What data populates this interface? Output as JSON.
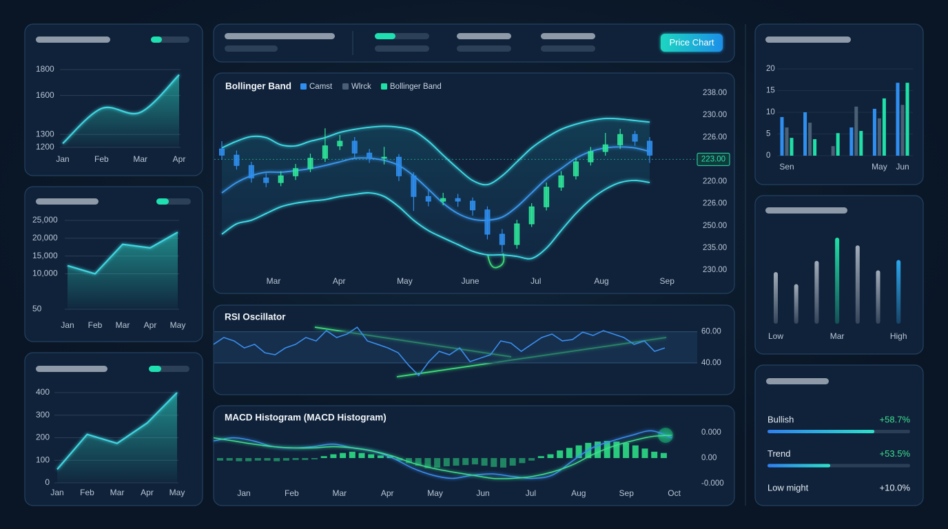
{
  "toolbar": {
    "button": "Price Chart"
  },
  "chart_data": [
    {
      "type": "area",
      "categories": [
        "Jan",
        "Feb",
        "Mar",
        "Apr"
      ],
      "values": [
        1230,
        1500,
        1470,
        1760
      ],
      "ylim": [
        1200,
        1800
      ],
      "yticks": [
        1200,
        1300,
        1600,
        1800
      ]
    },
    {
      "type": "area",
      "categories": [
        "Jan",
        "Feb",
        "Mar",
        "Apr",
        "May"
      ],
      "values": [
        12300,
        10000,
        18300,
        17300,
        21700
      ],
      "ylim": [
        50,
        25000
      ],
      "yticks": [
        50,
        {
          "value": 10000,
          "label": "10,000"
        },
        {
          "value": 15000,
          "label": "15,000"
        },
        {
          "value": 20000,
          "label": "20,000"
        },
        {
          "value": 25000,
          "label": "25,000"
        }
      ]
    },
    {
      "type": "area",
      "categories": [
        "Jan",
        "Feb",
        "Mar",
        "Apr",
        "May"
      ],
      "values": [
        60,
        215,
        175,
        265,
        400
      ],
      "ylim": [
        0,
        400
      ],
      "yticks": [
        0,
        100,
        200,
        300,
        400
      ]
    },
    {
      "type": "candlestick",
      "title": "Bollinger Band",
      "legend": [
        {
          "name": "Camst",
          "color": "#2f8ff0"
        },
        {
          "name": "Wlrck",
          "color": "#4a5f75"
        },
        {
          "name": "Bollinger Band",
          "color": "#1fe0a6"
        }
      ],
      "x_labels": [
        "Mar",
        "Apr",
        "May",
        "June",
        "Jul",
        "Aug",
        "Sep"
      ],
      "y_labels": [
        "238.00",
        "230.00",
        "226.00",
        "223.00",
        "220.00",
        "226.00",
        "250.00",
        "235.00",
        "230.00"
      ],
      "ylim": [
        205,
        245
      ],
      "up_color": "#2ee89a",
      "down_color": "#2f8ff0",
      "candles": {
        "open": [
          231.5,
          230.3,
          228.3,
          225.9,
          225.0,
          226.3,
          227.7,
          229.7,
          232.1,
          233.0,
          230.7,
          229.7,
          229.9,
          226.3,
          222.3,
          221.4,
          221.9,
          221.4,
          219.7,
          215.0,
          213.0,
          217.0,
          220.3,
          224.1,
          226.3,
          229.0,
          231.0,
          232.3,
          234.3,
          233.0
        ],
        "high": [
          233.0,
          231.2,
          229.0,
          226.8,
          227.2,
          228.6,
          230.6,
          235.5,
          234.2,
          233.8,
          231.5,
          231.9,
          230.5,
          227.0,
          223.5,
          223.0,
          222.8,
          222.1,
          220.4,
          216.0,
          217.8,
          221.0,
          225.0,
          227.2,
          229.8,
          231.9,
          234.6,
          235.4,
          235.0,
          233.8
        ],
        "low": [
          229.4,
          227.5,
          225.0,
          224.1,
          224.3,
          225.5,
          227.0,
          229.0,
          231.3,
          229.8,
          228.8,
          228.5,
          225.3,
          219.5,
          220.4,
          220.6,
          220.3,
          218.6,
          214.0,
          211.5,
          212.2,
          216.4,
          219.6,
          223.4,
          225.6,
          228.3,
          230.2,
          231.5,
          232.1,
          228.8
        ],
        "close": [
          230.3,
          228.3,
          225.9,
          225.0,
          226.3,
          227.7,
          229.7,
          232.1,
          233.0,
          230.7,
          229.7,
          229.9,
          226.3,
          222.3,
          221.4,
          221.9,
          221.4,
          219.7,
          215.0,
          213.0,
          217.0,
          220.3,
          224.1,
          226.3,
          229.0,
          231.0,
          232.3,
          234.3,
          233.0,
          230.3
        ]
      },
      "bands": {
        "upper": [
          231.7,
          233.0,
          233.9,
          233.7,
          232.3,
          232.1,
          233.0,
          233.7,
          234.7,
          235.3,
          235.7,
          235.9,
          235.7,
          235.0,
          233.0,
          230.3,
          227.7,
          225.4,
          224.6,
          226.3,
          229.0,
          231.7,
          233.7,
          235.3,
          236.3,
          237.0,
          237.4,
          237.3,
          237.0,
          236.7
        ],
        "middle": [
          223.0,
          225.0,
          226.3,
          227.0,
          227.0,
          227.3,
          227.7,
          228.3,
          229.0,
          229.7,
          229.7,
          229.3,
          228.3,
          226.3,
          223.7,
          221.0,
          219.0,
          217.9,
          217.7,
          218.3,
          220.3,
          223.0,
          225.7,
          227.7,
          229.7,
          231.0,
          231.7,
          231.9,
          231.7,
          231.0
        ],
        "lower": [
          215.0,
          217.0,
          217.7,
          219.0,
          220.3,
          221.0,
          221.4,
          221.7,
          222.3,
          222.7,
          223.0,
          222.3,
          220.3,
          217.7,
          215.7,
          214.3,
          213.0,
          211.7,
          211.0,
          211.0,
          210.7,
          210.3,
          212.3,
          215.7,
          219.0,
          221.7,
          223.7,
          225.0,
          225.4,
          225.0
        ]
      }
    },
    {
      "type": "line",
      "title": "RSI Oscillator",
      "color": "#3a8ff0",
      "values": [
        51.9,
        56.3,
        54.1,
        49.6,
        51.9,
        46.5,
        45.2,
        49.6,
        51.9,
        56.3,
        54.1,
        60.7,
        56.3,
        58.5,
        62.9,
        54.1,
        51.9,
        49.6,
        46.5,
        38.6,
        31.9,
        40.8,
        47.4,
        45.2,
        49.6,
        40.8,
        43.0,
        45.2,
        54.1,
        52.7,
        47.4,
        51.9,
        56.3,
        58.5,
        54.1,
        55.0,
        59.8,
        57.6,
        60.7,
        58.5,
        56.3,
        51.9,
        54.1,
        47.4,
        49.6
      ],
      "ylim": [
        20,
        74
      ],
      "yticks": [
        {
          "value": 60,
          "label": "60.00"
        },
        {
          "value": 40,
          "label": "40.00"
        }
      ]
    },
    {
      "type": "histogram",
      "title": "MACD Histogram (MACD Histogram)",
      "color": "#2ee88a",
      "x_labels": [
        "Jan",
        "Feb",
        "Mar",
        "Apr",
        "May",
        "Jun",
        "Jul",
        "Aug",
        "Sep",
        "Oct"
      ],
      "values": [
        -4e-05,
        -4e-05,
        -5e-05,
        -5e-05,
        -4e-05,
        -4e-05,
        -5e-05,
        -4e-05,
        -3e-05,
        -3e-05,
        -2e-05,
        3e-05,
        6e-05,
        8e-05,
        0.0001,
        8e-05,
        6e-05,
        4e-05,
        3e-05,
        -4e-05,
        -8e-05,
        -0.00012,
        -0.00016,
        -0.00015,
        -0.00013,
        -0.00012,
        -0.00011,
        -0.0001,
        -0.00012,
        -0.00014,
        -0.00015,
        -0.00012,
        -8e-05,
        -4e-05,
        3e-05,
        6e-05,
        0.00012,
        0.00016,
        0.0002,
        0.00024,
        0.00026,
        0.00027,
        0.00026,
        0.00024,
        0.0002,
        0.00015,
        0.0001,
        8e-05
      ],
      "series": [
        {
          "color": "#3a8ff0",
          "values": [
            0.00027,
            0.00032,
            0.00027,
            0.00018,
            0.00016,
            0.00018,
            0.00022,
            0.00016,
            0.00011,
            0,
            -0.00016,
            -0.00027,
            -0.00032,
            -0.00027,
            -0.00025,
            -0.00029,
            -0.00032,
            -0.00027,
            -5e-05,
            0.00016,
            0.00027,
            0.00036,
            0.00043,
            0.00032
          ]
        },
        {
          "color": "#3ee08f",
          "values": [
            0.00032,
            0.00027,
            0.00022,
            0.00018,
            0.00016,
            0.00016,
            0.00018,
            0.00016,
            0.00011,
            3e-05,
            -8e-05,
            -0.00016,
            -0.00022,
            -0.00027,
            -0.00032,
            -0.00032,
            -0.00029,
            -0.00022,
            -0.00011,
            5e-05,
            0.00018,
            0.00027,
            0.00034,
            0.00036
          ]
        }
      ],
      "ylim": [
        -0.0005,
        0.0005
      ],
      "yticks": [
        {
          "value": 0.0004,
          "label": "0.000"
        },
        {
          "value": 0,
          "label": "0.00"
        },
        {
          "value": -0.0004,
          "label": "-0.000"
        }
      ]
    },
    {
      "type": "bar",
      "categories": [
        "Sen",
        null,
        null,
        null,
        "May",
        "Jun"
      ],
      "series": [
        {
          "color": "#2f8ff0",
          "values": [
            8.9,
            10,
            null,
            6.5,
            10.8,
            16.8
          ]
        },
        {
          "color": "#4a6075",
          "values": [
            6.5,
            7.6,
            2.2,
            11.3,
            8.6,
            11.7
          ]
        },
        {
          "color": "#1fe0a6",
          "values": [
            4.1,
            3.8,
            5.2,
            5.7,
            13.2,
            16.8
          ]
        }
      ],
      "ylim": [
        0,
        20
      ],
      "yticks": [
        0,
        5,
        10,
        15,
        20
      ]
    },
    {
      "type": "bar",
      "categories": [
        "Low",
        null,
        null,
        "Mar",
        null,
        null,
        "High"
      ],
      "values": [
        60,
        46,
        73,
        100,
        91,
        62,
        74
      ],
      "colors": [
        "#a3adba",
        "#a3adba",
        "#a3adba",
        "#1fe0a6",
        "#a3adba",
        "#a3adba",
        "#2aa8ee"
      ]
    }
  ],
  "stats": {
    "rows": [
      {
        "label": "Bullish",
        "value": "+58.7%",
        "color": "#3ee08f",
        "bar": 75
      },
      {
        "label": "Trend",
        "value": "+53.5%",
        "color": "#3ee08f",
        "bar": 44
      },
      {
        "label": "Low might",
        "value": "+10.0%",
        "color": "#e6edf5",
        "bar": null
      }
    ]
  }
}
